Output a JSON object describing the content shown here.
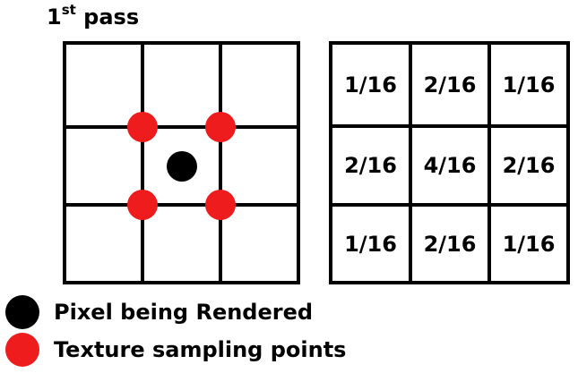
{
  "title": {
    "main": "1",
    "superscript": "st",
    "rest": " pass"
  },
  "colors": {
    "pixel": "#000000",
    "sample": "#ee1c1c",
    "grid": "#000000"
  },
  "weights": [
    [
      "1/16",
      "2/16",
      "1/16"
    ],
    [
      "2/16",
      "4/16",
      "2/16"
    ],
    [
      "1/16",
      "2/16",
      "1/16"
    ]
  ],
  "legend": {
    "pixel_label": "Pixel being Rendered",
    "sample_label": "Texture sampling points"
  }
}
